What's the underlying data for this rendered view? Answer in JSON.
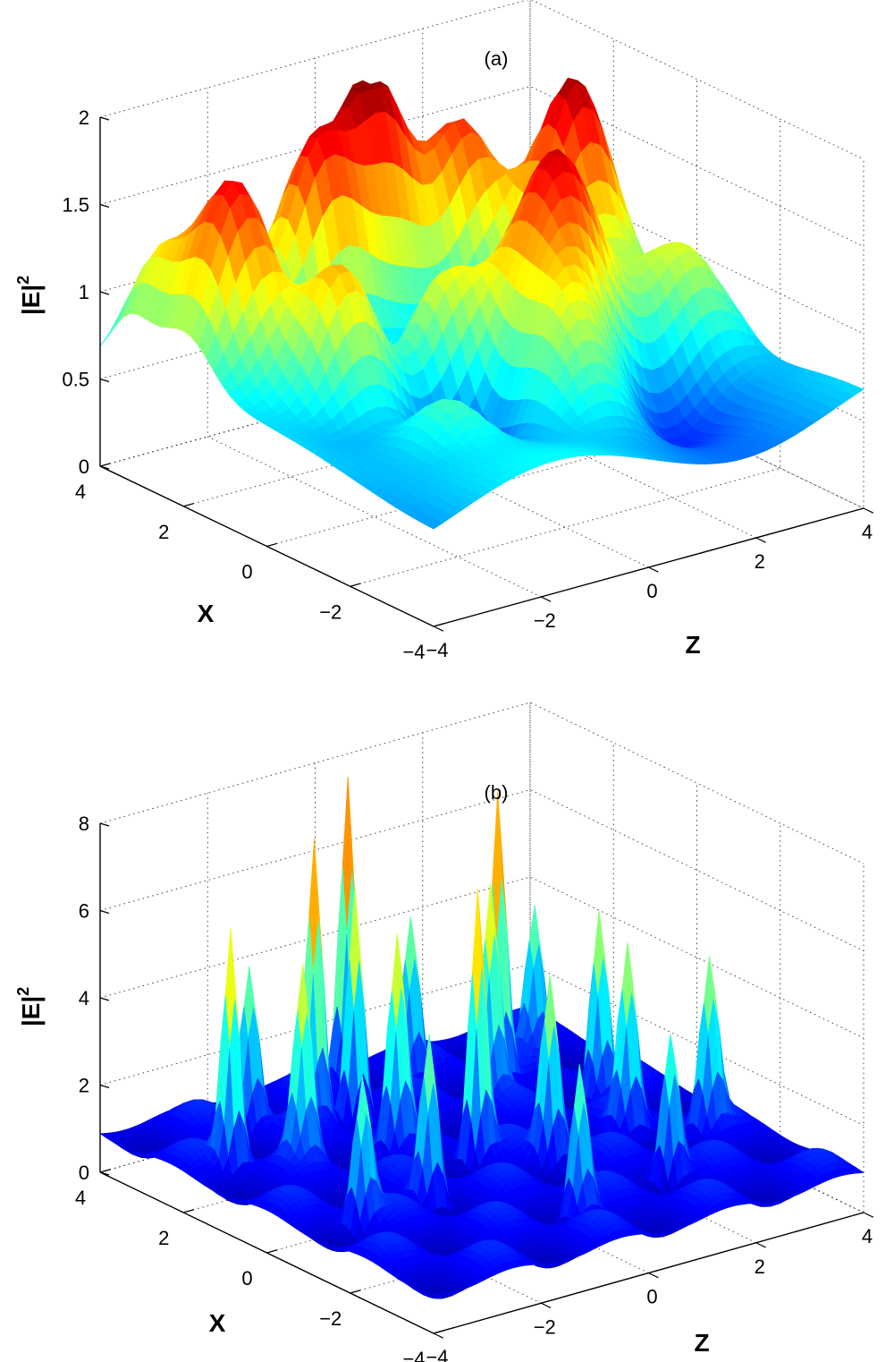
{
  "chart_data": [
    {
      "type": "surface",
      "title": "(a)",
      "xlabel": "Z",
      "ylabel": "X",
      "zlabel_base": "|E|",
      "zlabel_exp": "2",
      "xlim": [
        -4,
        4
      ],
      "ylim": [
        -4,
        4
      ],
      "zlim": [
        0,
        2
      ],
      "xticks": [
        -4,
        -2,
        0,
        2,
        4
      ],
      "xtick_labels": [
        "−4",
        "−2",
        "0",
        "2",
        "4"
      ],
      "yticks": [
        -4,
        -2,
        0,
        2,
        4
      ],
      "ytick_labels": [
        "−4",
        "−2",
        "0",
        "2",
        "4"
      ],
      "zticks": [
        0,
        0.5,
        1,
        1.5,
        2
      ],
      "ztick_labels": [
        "0",
        "0.5",
        "1",
        "1.5",
        "2"
      ],
      "grid": true,
      "colormap": "jet",
      "surface": {
        "background": 0.62,
        "modulation": {
          "amplitude": 0.14,
          "kz": 0.9,
          "kx": 0.75
        },
        "peaks": [
          {
            "z": -3.0,
            "x": 2.0,
            "h": 1.22,
            "w": 0.65
          },
          {
            "z": -1.1,
            "x": 2.5,
            "h": 1.25,
            "w": 0.6
          },
          {
            "z": 0.2,
            "x": 2.9,
            "h": 1.35,
            "w": 0.55
          },
          {
            "z": 1.6,
            "x": 2.6,
            "h": 1.05,
            "w": 0.55
          },
          {
            "z": 2.8,
            "x": 1.4,
            "h": 1.28,
            "w": 0.6
          },
          {
            "z": -2.2,
            "x": 0.5,
            "h": 1.0,
            "w": 0.6
          },
          {
            "z": -0.4,
            "x": 0.4,
            "h": 0.85,
            "w": 0.6
          },
          {
            "z": 1.2,
            "x": -0.2,
            "h": 1.15,
            "w": 0.7
          },
          {
            "z": 0.4,
            "x": -1.5,
            "h": 0.7,
            "w": 0.7
          },
          {
            "z": 3.3,
            "x": -0.6,
            "h": 0.55,
            "w": 0.6
          },
          {
            "z": -3.5,
            "x": 3.3,
            "h": 0.55,
            "w": 0.5
          },
          {
            "z": -1.8,
            "x": -1.6,
            "h": 0.45,
            "w": 0.6
          }
        ],
        "troughs": [
          {
            "z": -1.6,
            "x": 1.6,
            "d": 0.45,
            "w": 0.8
          },
          {
            "z": 0.2,
            "x": 0.6,
            "d": 0.25,
            "w": 0.8
          },
          {
            "z": -0.9,
            "x": -1.2,
            "d": 0.42,
            "w": 0.8
          },
          {
            "z": 1.8,
            "x": -1.8,
            "d": 0.38,
            "w": 0.8
          }
        ]
      }
    },
    {
      "type": "surface",
      "title": "(b)",
      "xlabel": "Z",
      "ylabel": "X",
      "zlabel_base": "|E|",
      "zlabel_exp": "2",
      "xlim": [
        -4,
        4
      ],
      "ylim": [
        -4,
        4
      ],
      "zlim": [
        0,
        8
      ],
      "xticks": [
        -4,
        -2,
        0,
        2,
        4
      ],
      "xtick_labels": [
        "−4",
        "−2",
        "0",
        "2",
        "4"
      ],
      "yticks": [
        -4,
        -2,
        0,
        2,
        4
      ],
      "ytick_labels": [
        "−4",
        "−2",
        "0",
        "2",
        "4"
      ],
      "zticks": [
        0,
        2,
        4,
        6,
        8
      ],
      "ztick_labels": [
        "0",
        "2",
        "4",
        "6",
        "8"
      ],
      "grid": true,
      "colormap": "jet",
      "surface": {
        "background": 0.9,
        "modulation": {
          "amplitude": 0.45,
          "kz": 3.1,
          "kx": 2.7
        },
        "peaks": [
          {
            "z": -1.1,
            "x": 2.6,
            "h": 6.3,
            "w": 0.12
          },
          {
            "z": 0.3,
            "x": 3.6,
            "h": 7.2,
            "w": 0.12
          },
          {
            "z": 2.0,
            "x": 2.2,
            "h": 6.6,
            "w": 0.12
          },
          {
            "z": -0.5,
            "x": 2.4,
            "h": 5.6,
            "w": 0.12
          },
          {
            "z": -3.2,
            "x": 1.9,
            "h": 5.3,
            "w": 0.12
          },
          {
            "z": 0.0,
            "x": 0.1,
            "h": 6.0,
            "w": 0.12
          },
          {
            "z": -0.8,
            "x": 1.0,
            "h": 4.6,
            "w": 0.13
          },
          {
            "z": 1.4,
            "x": 1.6,
            "h": 4.8,
            "w": 0.13
          },
          {
            "z": -2.4,
            "x": 1.2,
            "h": 4.2,
            "w": 0.13
          },
          {
            "z": 2.8,
            "x": 0.8,
            "h": 4.4,
            "w": 0.13
          },
          {
            "z": 0.8,
            "x": -0.6,
            "h": 4.1,
            "w": 0.13
          },
          {
            "z": -1.6,
            "x": -0.8,
            "h": 3.9,
            "w": 0.13
          },
          {
            "z": 3.3,
            "x": -1.2,
            "h": 3.6,
            "w": 0.13
          },
          {
            "z": -3.0,
            "x": -1.0,
            "h": 3.2,
            "w": 0.13
          },
          {
            "z": 1.8,
            "x": -2.2,
            "h": 3.4,
            "w": 0.13
          },
          {
            "z": -0.2,
            "x": -2.6,
            "h": 3.5,
            "w": 0.13
          },
          {
            "z": 2.4,
            "x": -0.4,
            "h": 4.0,
            "w": 0.13
          },
          {
            "z": -2.0,
            "x": 3.0,
            "h": 3.6,
            "w": 0.13
          },
          {
            "z": 1.0,
            "x": 3.0,
            "h": 3.7,
            "w": 0.13
          },
          {
            "z": 3.0,
            "x": 2.6,
            "h": 3.4,
            "w": 0.13
          }
        ],
        "troughs": []
      }
    }
  ]
}
